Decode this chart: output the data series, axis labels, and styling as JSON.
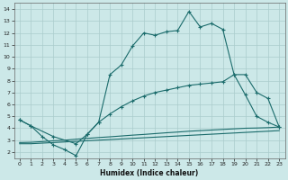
{
  "xlabel": "Humidex (Indice chaleur)",
  "xlim": [
    -0.5,
    23.5
  ],
  "ylim": [
    1.5,
    14.5
  ],
  "xticks": [
    0,
    1,
    2,
    3,
    4,
    5,
    6,
    7,
    8,
    9,
    10,
    11,
    12,
    13,
    14,
    15,
    16,
    17,
    18,
    19,
    20,
    21,
    22,
    23
  ],
  "yticks": [
    2,
    3,
    4,
    5,
    6,
    7,
    8,
    9,
    10,
    11,
    12,
    13,
    14
  ],
  "bg_color": "#cce8e8",
  "grid_color": "#aacccc",
  "line_color": "#1a6b6b",
  "line1_x": [
    0,
    1,
    2,
    3,
    4,
    5,
    6,
    7,
    8,
    9,
    10,
    11,
    12,
    13,
    14,
    15,
    16,
    17,
    18,
    19,
    20,
    21,
    22,
    23
  ],
  "line1_y": [
    4.7,
    4.2,
    3.3,
    2.6,
    2.2,
    1.7,
    3.5,
    4.5,
    8.5,
    9.3,
    10.9,
    12.0,
    11.8,
    12.1,
    12.2,
    13.8,
    12.5,
    12.8,
    12.3,
    8.5,
    6.8,
    5.0,
    4.5,
    4.1
  ],
  "line2_x": [
    0,
    1,
    3,
    5,
    6,
    7,
    8,
    9,
    10,
    11,
    12,
    13,
    14,
    15,
    16,
    17,
    18,
    19,
    20,
    21,
    22,
    23
  ],
  "line2_y": [
    4.7,
    4.2,
    3.3,
    2.7,
    3.5,
    4.5,
    5.2,
    5.8,
    6.3,
    6.7,
    7.0,
    7.2,
    7.4,
    7.6,
    7.7,
    7.8,
    7.9,
    8.5,
    8.5,
    7.0,
    6.5,
    4.1
  ],
  "line3_x": [
    0,
    1,
    2,
    3,
    4,
    5,
    6,
    7,
    8,
    9,
    10,
    11,
    12,
    13,
    14,
    15,
    16,
    17,
    18,
    19,
    20,
    21,
    22,
    23
  ],
  "line3_y": [
    2.7,
    2.7,
    2.75,
    2.8,
    2.85,
    2.9,
    2.95,
    3.0,
    3.05,
    3.1,
    3.15,
    3.2,
    3.25,
    3.3,
    3.35,
    3.4,
    3.45,
    3.5,
    3.55,
    3.6,
    3.65,
    3.7,
    3.75,
    3.8
  ],
  "line4_x": [
    0,
    1,
    2,
    3,
    4,
    5,
    6,
    7,
    8,
    9,
    10,
    11,
    12,
    13,
    14,
    15,
    16,
    17,
    18,
    19,
    20,
    21,
    22,
    23
  ],
  "line4_y": [
    2.8,
    2.82,
    2.88,
    2.95,
    3.0,
    3.08,
    3.15,
    3.22,
    3.28,
    3.35,
    3.42,
    3.48,
    3.55,
    3.62,
    3.68,
    3.75,
    3.8,
    3.85,
    3.9,
    3.95,
    4.0,
    4.02,
    4.05,
    4.1
  ]
}
